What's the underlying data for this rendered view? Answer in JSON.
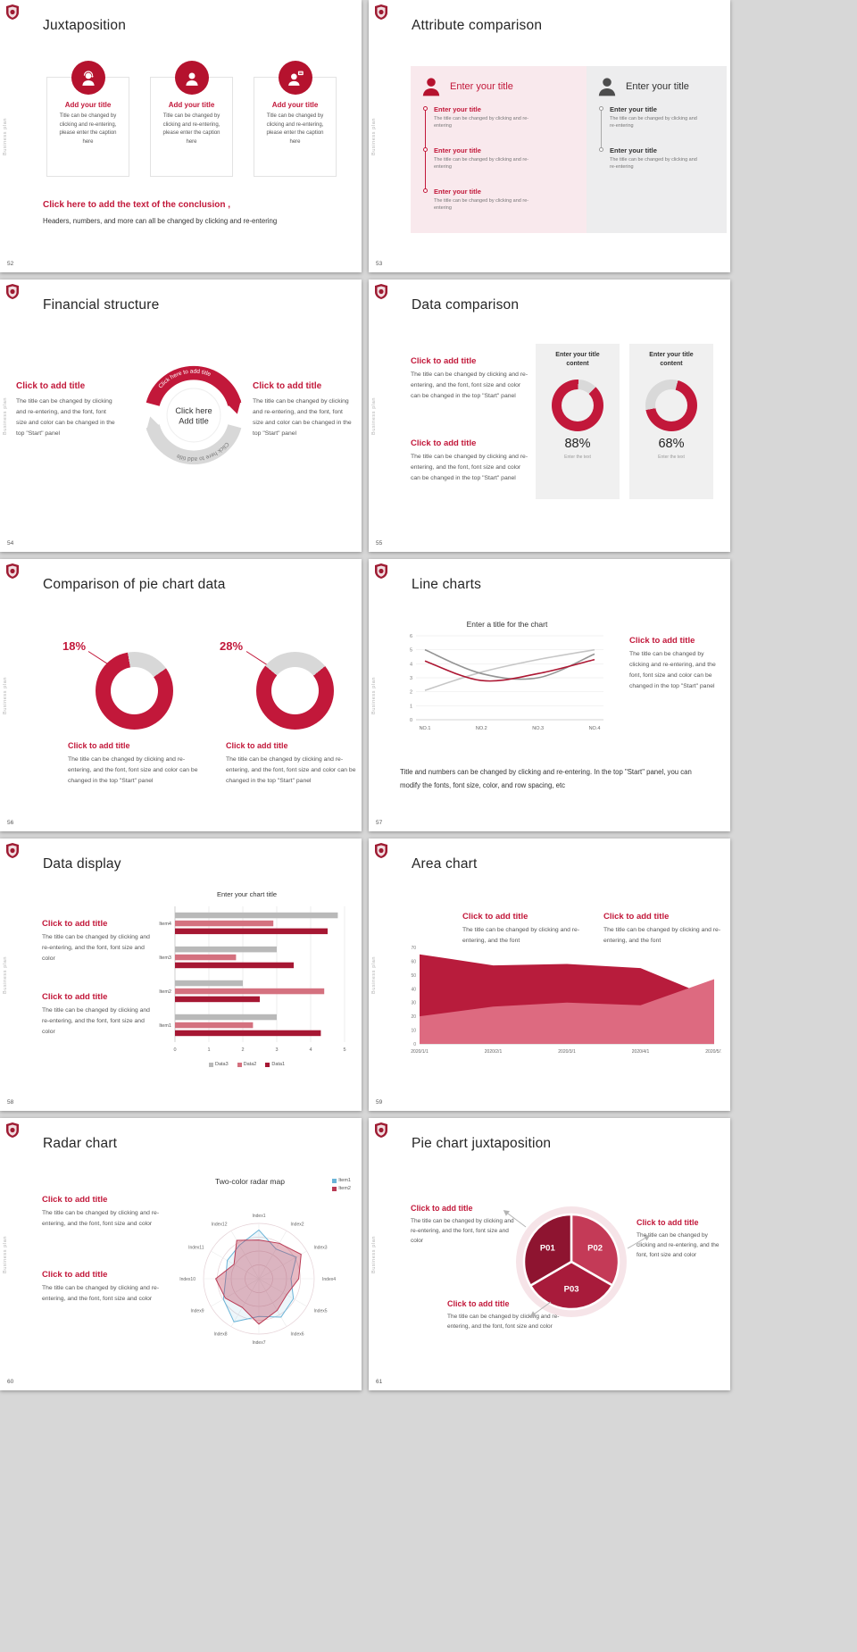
{
  "common": {
    "side_label": "Business plan",
    "accent": "#c2183a"
  },
  "slides": {
    "s52": {
      "number": "52",
      "title": "Juxtaposition",
      "cards": [
        {
          "icon": "agent-icon",
          "title": "Add your title",
          "body": "Title can be changed by clicking and re-entering, please enter the caption here"
        },
        {
          "icon": "person-icon",
          "title": "Add your title",
          "body": "Title can be changed by clicking and re-entering, please enter the caption here"
        },
        {
          "icon": "presenter-icon",
          "title": "Add your title",
          "body": "Title can be changed by clicking and re-entering, please enter the caption here"
        }
      ],
      "conclusion_title": "Click here to add the text of the conclusion ,",
      "conclusion_body": "Headers, numbers, and more can all be changed by clicking and re-entering"
    },
    "s53": {
      "number": "53",
      "title": "Attribute comparison",
      "left_panel": {
        "heading": "Enter your title",
        "items": [
          {
            "title": "Enter your title",
            "body": "The title can be changed by clicking and re-entering"
          },
          {
            "title": "Enter your title",
            "body": "The title can be changed by clicking and re-entering"
          },
          {
            "title": "Enter your title",
            "body": "The title can be changed by clicking and re-entering"
          }
        ]
      },
      "right_panel": {
        "heading": "Enter your title",
        "items": [
          {
            "title": "Enter your title",
            "body": "The title can be changed by clicking and re-entering"
          },
          {
            "title": "Enter your title",
            "body": "The title can be changed by clicking and re-entering"
          }
        ]
      }
    },
    "s54": {
      "number": "54",
      "title": "Financial structure",
      "left": {
        "heading": "Click to add title",
        "body": "The title can be changed by clicking and re-entering, and the font, font size and color can be changed in the top \"Start\" panel"
      },
      "right": {
        "heading": "Click to add title",
        "body": "The title can be changed by clicking and re-entering, and the font, font size and color can be changed in the top \"Start\" panel"
      },
      "ring": {
        "arc_label_top": "Click here to add title",
        "arc_label_bottom": "Click here to add title",
        "center_line1": "Click here",
        "center_line2": "Add title"
      }
    },
    "s55": {
      "number": "55",
      "title": "Data comparison",
      "blocks": [
        {
          "heading": "Click to add title",
          "body": "The title can be changed by clicking and re-entering, and the font, font size and color can be changed in the top \"Start\" panel"
        },
        {
          "heading": "Click to add title",
          "body": "The title can be changed by clicking and re-entering, and the font, font size and color can be changed in the top \"Start\" panel"
        }
      ],
      "panels": [
        {
          "heading": "Enter your title content",
          "percent_label": "88%",
          "value": 88,
          "caption": "Enter the text",
          "color": "#c2183a",
          "track": "#d9d9d9",
          "from": "45deg"
        },
        {
          "heading": "Enter your title content",
          "percent_label": "68%",
          "value": 68,
          "caption": "Enter the text",
          "color": "#c2183a",
          "track": "#d9d9d9",
          "from": "15deg"
        }
      ]
    },
    "s56": {
      "number": "56",
      "title": "Comparison of pie chart data",
      "donuts": [
        {
          "percent_label": "18%",
          "value": 18,
          "color": "#c2183a",
          "track": "#d8d8d8",
          "from": "-10deg"
        },
        {
          "percent_label": "28%",
          "value": 28,
          "color": "#c2183a",
          "track": "#d8d8d8",
          "from": "-50deg"
        }
      ],
      "blocks": [
        {
          "heading": "Click to add title",
          "body": "The title can be changed by clicking and re-entering, and the font, font size and color can be changed in the top \"Start\" panel"
        },
        {
          "heading": "Click to add title",
          "body": "The title can be changed by clicking and re-entering, and the font, font size and color can be changed in the top \"Start\" panel"
        }
      ]
    },
    "s57": {
      "number": "57",
      "title": "Line charts",
      "chart": {
        "type": "line",
        "title": "Enter a title for the chart",
        "x": [
          "NO.1",
          "NO.2",
          "NO.3",
          "NO.4"
        ],
        "ylim": [
          0,
          6
        ],
        "yticks": [
          0,
          1,
          2,
          3,
          4,
          5,
          6
        ],
        "series": [
          {
            "name": "series-gray-light",
            "color": "#c6c6c6",
            "values": [
              2.1,
              3.4,
              4.3,
              5.0
            ]
          },
          {
            "name": "series-gray-dark",
            "color": "#949494",
            "values": [
              5.0,
              3.3,
              3.0,
              4.7
            ]
          },
          {
            "name": "series-red",
            "color": "#ad1733",
            "values": [
              4.2,
              2.8,
              3.3,
              4.3
            ]
          }
        ]
      },
      "block": {
        "heading": "Click to add title",
        "body": "The title can be changed by clicking and re-entering, and the font, font size and color can be changed in the top \"Start\" panel"
      },
      "footer": "Title and numbers can be changed by clicking and re-entering. In the top \"Start\" panel, you can modify the fonts, font size, color, and row spacing, etc"
    },
    "s58": {
      "number": "58",
      "title": "Data display",
      "blocks": [
        {
          "heading": "Click to add title",
          "body": "The title can be changed by clicking and re-entering, and the font, font size and color"
        },
        {
          "heading": "Click to add title",
          "body": "The title can be changed by clicking and re-entering, and the font, font size and color"
        }
      ],
      "chart": {
        "type": "bar",
        "title": "Enter your chart title",
        "categories": [
          "Item1",
          "Item2",
          "Item3",
          "Item4"
        ],
        "xlim": [
          0,
          5
        ],
        "xticks": [
          0,
          1,
          2,
          3,
          4,
          5
        ],
        "series": [
          {
            "name": "Data3",
            "color": "#b9b9b9",
            "values": [
              3.0,
              2.0,
              3.0,
              4.8
            ]
          },
          {
            "name": "Data2",
            "color": "#d4717f",
            "values": [
              2.3,
              4.4,
              1.8,
              2.9
            ]
          },
          {
            "name": "Data1",
            "color": "#a61733",
            "values": [
              4.3,
              2.5,
              3.5,
              4.5
            ]
          }
        ]
      }
    },
    "s59": {
      "number": "59",
      "title": "Area chart",
      "blocks": [
        {
          "heading": "Click to add title",
          "body": "The title can be changed by clicking and re-entering, and the font"
        },
        {
          "heading": "Click to add title",
          "body": "The title can be changed by clicking and re-entering, and the font"
        }
      ],
      "chart": {
        "type": "area",
        "x": [
          "2020/1/1",
          "2020/2/1",
          "2020/3/1",
          "2020/4/1",
          "2020/5/1"
        ],
        "ylim": [
          0,
          70
        ],
        "yticks": [
          0,
          10,
          20,
          30,
          40,
          50,
          60,
          70
        ],
        "series": [
          {
            "name": "series-dark",
            "color": "#b81c3c",
            "values": [
              65,
              57,
              58,
              55,
              33
            ]
          },
          {
            "name": "series-light",
            "color": "#dd6a80",
            "values": [
              20,
              27,
              30,
              28,
              47
            ]
          }
        ]
      }
    },
    "s60": {
      "number": "60",
      "title": "Radar chart",
      "blocks": [
        {
          "heading": "Click to add title",
          "body": "The title can be changed by clicking and re-entering, and the font, font size and color"
        },
        {
          "heading": "Click to add title",
          "body": "The title can be changed by clicking and re-entering, and the font, font size and color"
        }
      ],
      "chart": {
        "type": "radar",
        "title": "Two-color radar map",
        "axes": [
          "Index1",
          "Index2",
          "Index3",
          "Index4",
          "Index5",
          "Index6",
          "Index7",
          "Index8",
          "Index9",
          "Index10",
          "Index11",
          "Index12"
        ],
        "series": [
          {
            "name": "Item1",
            "color": "#6ab4d8",
            "fill": "rgba(106,180,216,0.12)",
            "values": [
              0.88,
              0.62,
              0.78,
              0.58,
              0.72,
              0.8,
              0.68,
              0.9,
              0.74,
              0.6,
              0.66,
              0.7
            ]
          },
          {
            "name": "Item2",
            "color": "#b93a54",
            "fill": "rgba(185,58,84,0.35)",
            "values": [
              0.7,
              0.74,
              0.88,
              0.72,
              0.58,
              0.66,
              0.82,
              0.6,
              0.7,
              0.78,
              0.52,
              0.8
            ]
          }
        ]
      }
    },
    "s61": {
      "number": "61",
      "title": "Pie chart juxtaposition",
      "blocks": {
        "left": {
          "heading": "Click to add title",
          "body": "The title can be changed by clicking and re-entering, and the font, font size and color"
        },
        "right": {
          "heading": "Click to add title",
          "body": "The title can be changed by clicking and re-entering, and the font, font size and color"
        },
        "bottom": {
          "heading": "Click to add title",
          "body": "The title can be changed by clicking and re-entering, and the font, font size and color"
        }
      },
      "chart": {
        "type": "pie",
        "slices": [
          {
            "label": "P02",
            "value": 33.3,
            "color": "#c43a57"
          },
          {
            "label": "P03",
            "value": 33.3,
            "color": "#a81b3b"
          },
          {
            "label": "P01",
            "value": 33.4,
            "color": "#8e1430"
          }
        ]
      }
    }
  }
}
